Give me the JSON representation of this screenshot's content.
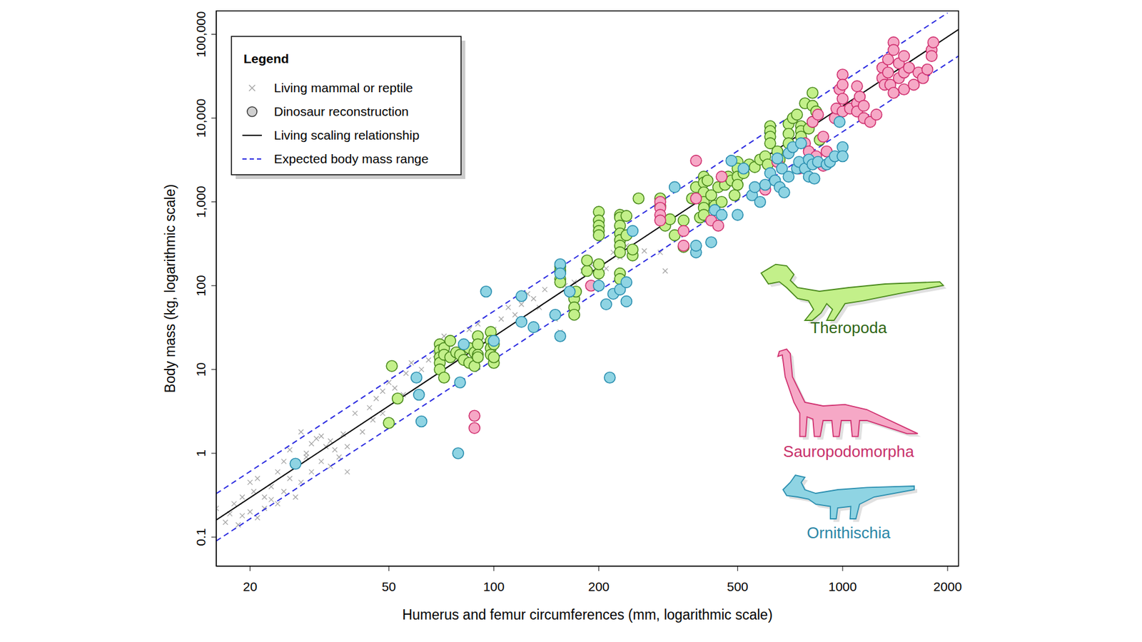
{
  "chart_data": {
    "type": "scatter",
    "x_label": "Humerus and femur circumferences (mm, logarithmic scale)",
    "y_label": "Body mass (kg, logarithmic scale)",
    "log": true,
    "grid": false,
    "legend": "upper left",
    "legend_title": "Legend",
    "xlim": [
      16,
      2150
    ],
    "ylim": [
      0.045,
      190000
    ],
    "xticks": [
      20,
      50,
      100,
      200,
      500,
      1000,
      2000
    ],
    "yticks": [
      0.1,
      1,
      10,
      100,
      {
        "value": 1000,
        "label": "1,000"
      },
      {
        "value": 10000,
        "label": "10,000"
      },
      {
        "value": 100000,
        "label": "100,000"
      }
    ],
    "series": [
      {
        "name": "Living mammal or reptile",
        "color": "#a6a6a6",
        "marker": "x",
        "x": [
          16,
          17,
          17.5,
          18,
          18.5,
          19,
          19,
          20,
          20,
          20.5,
          21,
          21,
          22,
          22,
          23,
          23,
          24,
          24,
          25,
          25,
          26,
          26,
          27,
          27,
          28,
          28,
          29,
          29,
          30,
          30,
          31,
          32,
          32,
          33,
          34,
          34,
          35,
          36,
          37,
          38,
          38,
          40,
          42,
          44,
          45,
          46,
          48,
          48,
          50,
          52,
          55,
          56,
          58,
          60,
          62,
          65,
          68,
          70,
          72,
          75,
          80,
          85,
          90,
          95,
          100,
          105,
          110,
          115,
          120,
          125,
          130,
          135,
          140,
          150,
          155,
          160,
          170,
          180,
          190,
          200,
          210,
          220,
          230,
          240,
          250,
          270,
          300,
          310
        ],
        "values": [
          0.22,
          0.15,
          0.19,
          0.25,
          0.14,
          0.18,
          0.3,
          0.2,
          0.45,
          0.35,
          0.17,
          0.5,
          0.3,
          0.22,
          0.4,
          0.28,
          0.25,
          0.6,
          0.35,
          0.8,
          0.5,
          1.1,
          0.3,
          0.7,
          1.8,
          0.45,
          1.0,
          0.9,
          1.3,
          0.6,
          1.5,
          0.8,
          1.6,
          1.2,
          0.7,
          1.4,
          1.1,
          0.9,
          1.7,
          0.6,
          1.2,
          3.0,
          1.8,
          3.5,
          2.5,
          4.5,
          5.5,
          3.0,
          7,
          6,
          5,
          9,
          12,
          8,
          10,
          13,
          15,
          11,
          25,
          20,
          18,
          30,
          35,
          22,
          30,
          40,
          55,
          45,
          60,
          80,
          70,
          55,
          90,
          40,
          28,
          100,
          110,
          150,
          180,
          120,
          160,
          250,
          220,
          300,
          240,
          260,
          250,
          150
        ]
      },
      {
        "name": "Theropoda",
        "group": "Dinosaur reconstruction",
        "color": "#c3f08a",
        "marker": "circle",
        "x": [
          51,
          53,
          50,
          70,
          70,
          70,
          70,
          70,
          72,
          72,
          72,
          75,
          75,
          78,
          80,
          82,
          85,
          85,
          88,
          88,
          90,
          90,
          90,
          90,
          98,
          98,
          98,
          98,
          100,
          100,
          100,
          155,
          155,
          155,
          155,
          170,
          170,
          170,
          172,
          185,
          185,
          200,
          200,
          200,
          200,
          200,
          200,
          200,
          230,
          230,
          230,
          230,
          230,
          230,
          230,
          230,
          230,
          240,
          240,
          250,
          250,
          260,
          300,
          300,
          310,
          320,
          330,
          350,
          350,
          370,
          380,
          390,
          400,
          400,
          400,
          400,
          400,
          400,
          410,
          420,
          430,
          440,
          450,
          460,
          470,
          480,
          490,
          500,
          500,
          500,
          500,
          520,
          540,
          560,
          580,
          600,
          610,
          620,
          620,
          620,
          620,
          650,
          660,
          700,
          700,
          700,
          720,
          740,
          760,
          760,
          760,
          780,
          800,
          820,
          820,
          820,
          840,
          860
        ],
        "values": [
          11,
          4.5,
          2.3,
          20,
          17,
          14,
          12,
          10,
          18,
          15,
          8,
          22,
          14,
          16,
          15,
          13,
          12,
          18,
          16,
          11,
          25,
          20,
          15,
          14,
          28,
          22,
          18,
          15,
          12,
          20,
          14,
          170,
          150,
          120,
          110,
          70,
          55,
          45,
          85,
          150,
          200,
          760,
          600,
          520,
          450,
          400,
          140,
          180,
          700,
          650,
          520,
          420,
          350,
          300,
          250,
          140,
          120,
          680,
          400,
          230,
          270,
          1100,
          1100,
          900,
          520,
          620,
          400,
          290,
          600,
          1100,
          1500,
          650,
          2000,
          1700,
          1300,
          1000,
          850,
          700,
          1800,
          1200,
          900,
          1500,
          1000,
          1600,
          2000,
          1800,
          1200,
          3000,
          2500,
          2000,
          1600,
          2200,
          2800,
          2600,
          3200,
          3500,
          2800,
          8000,
          7000,
          6000,
          5000,
          4000,
          3200,
          8500,
          6500,
          5000,
          10000,
          11000,
          8000,
          7000,
          6000,
          15000,
          7500,
          20000,
          14000,
          9000,
          12000,
          5500
        ]
      },
      {
        "name": "Sauropodomorpha",
        "group": "Dinosaur reconstruction",
        "color": "#f6a8c6",
        "marker": "circle",
        "x": [
          88,
          88,
          190,
          300,
          300,
          300,
          300,
          350,
          350,
          380,
          380,
          420,
          440,
          450,
          600,
          650,
          750,
          780,
          800,
          820,
          840,
          850,
          880,
          880,
          900,
          950,
          960,
          980,
          1000,
          1000,
          1000,
          1000,
          1050,
          1100,
          1100,
          1100,
          1120,
          1150,
          1150,
          1200,
          1250,
          1300,
          1300,
          1320,
          1350,
          1350,
          1370,
          1400,
          1400,
          1400,
          1450,
          1450,
          1500,
          1500,
          1500,
          1550,
          1600,
          1650,
          1700,
          1750,
          1800,
          1800,
          1820
        ],
        "values": [
          2.8,
          2.0,
          100,
          1000,
          850,
          700,
          600,
          450,
          300,
          3100,
          1100,
          600,
          520,
          2000,
          1400,
          3000,
          2500,
          5000,
          4000,
          9000,
          3500,
          11000,
          2700,
          6000,
          4000,
          10000,
          13000,
          22000,
          33000,
          25000,
          17000,
          12000,
          13000,
          24000,
          15000,
          12000,
          18000,
          10000,
          14000,
          9000,
          11000,
          40000,
          30000,
          25000,
          50000,
          35000,
          25000,
          20000,
          80000,
          65000,
          45000,
          30000,
          55000,
          35000,
          22000,
          40000,
          25000,
          35000,
          30000,
          38000,
          65000,
          55000,
          80000
        ]
      },
      {
        "name": "Ornithischia",
        "group": "Dinosaur reconstruction",
        "color": "#8fd4e3",
        "marker": "circle",
        "x": [
          27,
          60,
          61,
          62,
          79,
          80,
          82,
          95,
          100,
          120,
          120,
          130,
          150,
          155,
          155,
          155,
          165,
          200,
          210,
          215,
          220,
          230,
          240,
          240,
          250,
          330,
          380,
          380,
          420,
          430,
          450,
          480,
          500,
          520,
          550,
          560,
          580,
          600,
          620,
          640,
          650,
          660,
          670,
          680,
          700,
          700,
          720,
          740,
          750,
          760,
          780,
          800,
          800,
          820,
          830,
          850,
          900,
          920,
          950,
          980,
          1000,
          1000
        ],
        "values": [
          0.75,
          8,
          5,
          2.4,
          1.0,
          7,
          20,
          85,
          22,
          75,
          37,
          32,
          45,
          180,
          140,
          25,
          85,
          100,
          60,
          8,
          80,
          90,
          65,
          110,
          450,
          1500,
          250,
          300,
          330,
          800,
          700,
          3100,
          700,
          2500,
          1200,
          1500,
          1000,
          1600,
          2200,
          1800,
          3300,
          1500,
          2500,
          1300,
          2000,
          3800,
          4500,
          2500,
          3000,
          5000,
          2500,
          3200,
          2000,
          2800,
          1900,
          3000,
          2800,
          3000,
          3500,
          9000,
          4500,
          3500
        ]
      },
      {
        "name": "Living scaling relationship",
        "type": "line",
        "color": "#000000",
        "line_style": "solid",
        "x": [
          16,
          2150
        ],
        "values": [
          0.16,
          114000
        ]
      },
      {
        "name": "Expected body mass range",
        "type": "line",
        "color": "#2a2ae0",
        "line_style": "dashed",
        "x": [
          16,
          2000
        ],
        "values": [
          0.33,
          180000
        ]
      },
      {
        "name": "Expected body mass range",
        "type": "line",
        "color": "#2a2ae0",
        "line_style": "dashed",
        "x": [
          16,
          2150
        ],
        "values": [
          0.09,
          55000
        ]
      }
    ]
  }
}
